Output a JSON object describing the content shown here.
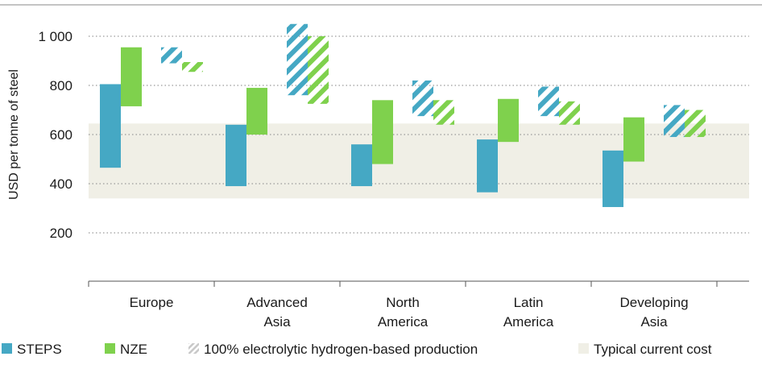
{
  "chart_data": {
    "type": "bar",
    "title": "",
    "xlabel": "",
    "ylabel": "USD per tonne of steel",
    "ylim": [
      100,
      1050
    ],
    "yticks": [
      200,
      400,
      600,
      800,
      1000
    ],
    "ytick_labels": [
      "200",
      "400",
      "600",
      "800",
      "1 000"
    ],
    "grid": "horizontal-dotted",
    "categories": [
      "Europe",
      "Advanced Asia",
      "North America",
      "Latin America",
      "Developing Asia"
    ],
    "category_lines": [
      [
        "Europe"
      ],
      [
        "Advanced",
        "Asia"
      ],
      [
        "North",
        "America"
      ],
      [
        "Latin",
        "America"
      ],
      [
        "Developing",
        "Asia"
      ]
    ],
    "typical_current_cost_band": [
      340,
      645
    ],
    "series": [
      {
        "name": "STEPS",
        "color": "#45a8c4",
        "ranges": [
          [
            465,
            805
          ],
          [
            390,
            640
          ],
          [
            390,
            560
          ],
          [
            365,
            580
          ],
          [
            305,
            535
          ]
        ]
      },
      {
        "name": "NZE",
        "color": "#7fd14d",
        "ranges": [
          [
            715,
            955
          ],
          [
            600,
            790
          ],
          [
            480,
            740
          ],
          [
            570,
            745
          ],
          [
            490,
            670
          ]
        ]
      },
      {
        "name": "100% electrolytic hydrogen-based production",
        "hatched": true,
        "steps_ranges": [
          [
            890,
            955
          ],
          [
            760,
            1050
          ],
          [
            675,
            820
          ],
          [
            675,
            795
          ],
          [
            590,
            720
          ]
        ],
        "nze_ranges": [
          [
            855,
            895
          ],
          [
            725,
            1000
          ],
          [
            640,
            740
          ],
          [
            640,
            735
          ],
          [
            590,
            700
          ]
        ]
      }
    ],
    "legend": {
      "position": "bottom",
      "items": [
        "STEPS",
        "NZE",
        "100% electrolytic hydrogen-based production",
        "Typical current cost"
      ]
    },
    "colors": {
      "steps": "#45a8c4",
      "nze": "#7fd14d",
      "band": "#f0efe6",
      "grid": "#9a9a9a",
      "axis": "#555555"
    }
  }
}
